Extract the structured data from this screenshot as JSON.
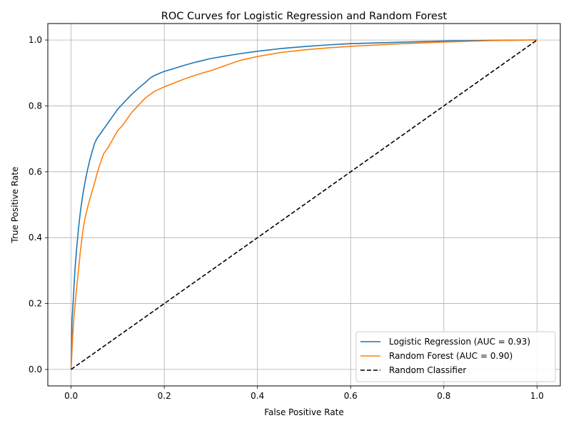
{
  "chart_data": {
    "type": "line",
    "title": "ROC Curves for Logistic Regression and Random Forest",
    "xlabel": "False Positive Rate",
    "ylabel": "True Positive Rate",
    "xlim": [
      -0.05,
      1.05
    ],
    "ylim": [
      -0.05,
      1.05
    ],
    "xticks": [
      0.0,
      0.2,
      0.4,
      0.6,
      0.8,
      1.0
    ],
    "yticks": [
      0.0,
      0.2,
      0.4,
      0.6,
      0.8,
      1.0
    ],
    "xtick_labels": [
      "0.0",
      "0.2",
      "0.4",
      "0.6",
      "0.8",
      "1.0"
    ],
    "ytick_labels": [
      "0.0",
      "0.2",
      "0.4",
      "0.6",
      "0.8",
      "1.0"
    ],
    "grid": true,
    "legend_position": "lower-right",
    "series": [
      {
        "name": "Logistic Regression (AUC = 0.93)",
        "color": "#1f77b4",
        "style": "solid",
        "x": [
          0.0,
          0.002,
          0.005,
          0.008,
          0.012,
          0.016,
          0.02,
          0.025,
          0.03,
          0.035,
          0.04,
          0.045,
          0.05,
          0.055,
          0.06,
          0.065,
          0.07,
          0.08,
          0.09,
          0.1,
          0.11,
          0.12,
          0.13,
          0.14,
          0.15,
          0.16,
          0.17,
          0.18,
          0.2,
          0.22,
          0.24,
          0.26,
          0.28,
          0.3,
          0.33,
          0.36,
          0.4,
          0.45,
          0.5,
          0.55,
          0.6,
          0.7,
          0.8,
          0.9,
          1.0
        ],
        "y": [
          0.0,
          0.15,
          0.22,
          0.3,
          0.37,
          0.43,
          0.48,
          0.53,
          0.57,
          0.605,
          0.635,
          0.66,
          0.685,
          0.7,
          0.71,
          0.72,
          0.73,
          0.75,
          0.77,
          0.79,
          0.805,
          0.82,
          0.835,
          0.848,
          0.86,
          0.872,
          0.885,
          0.893,
          0.905,
          0.913,
          0.922,
          0.93,
          0.937,
          0.944,
          0.951,
          0.958,
          0.966,
          0.974,
          0.98,
          0.985,
          0.989,
          0.993,
          0.997,
          0.999,
          1.0
        ]
      },
      {
        "name": "Random Forest (AUC = 0.90)",
        "color": "#ff7f0e",
        "style": "solid",
        "x": [
          0.0,
          0.003,
          0.006,
          0.01,
          0.015,
          0.02,
          0.025,
          0.03,
          0.035,
          0.04,
          0.045,
          0.05,
          0.055,
          0.06,
          0.065,
          0.07,
          0.08,
          0.09,
          0.1,
          0.11,
          0.12,
          0.13,
          0.14,
          0.15,
          0.16,
          0.17,
          0.18,
          0.2,
          0.22,
          0.24,
          0.26,
          0.28,
          0.3,
          0.33,
          0.36,
          0.4,
          0.45,
          0.5,
          0.55,
          0.6,
          0.7,
          0.8,
          0.9,
          1.0
        ],
        "y": [
          0.0,
          0.09,
          0.16,
          0.22,
          0.29,
          0.36,
          0.42,
          0.46,
          0.49,
          0.515,
          0.54,
          0.565,
          0.59,
          0.615,
          0.635,
          0.655,
          0.675,
          0.7,
          0.725,
          0.74,
          0.76,
          0.78,
          0.795,
          0.81,
          0.825,
          0.835,
          0.845,
          0.858,
          0.869,
          0.88,
          0.89,
          0.899,
          0.907,
          0.922,
          0.937,
          0.95,
          0.962,
          0.97,
          0.976,
          0.981,
          0.988,
          0.994,
          0.998,
          1.0
        ]
      },
      {
        "name": "Random Classifier",
        "color": "#000000",
        "style": "dashed",
        "x": [
          0.0,
          1.0
        ],
        "y": [
          0.0,
          1.0
        ]
      }
    ]
  }
}
